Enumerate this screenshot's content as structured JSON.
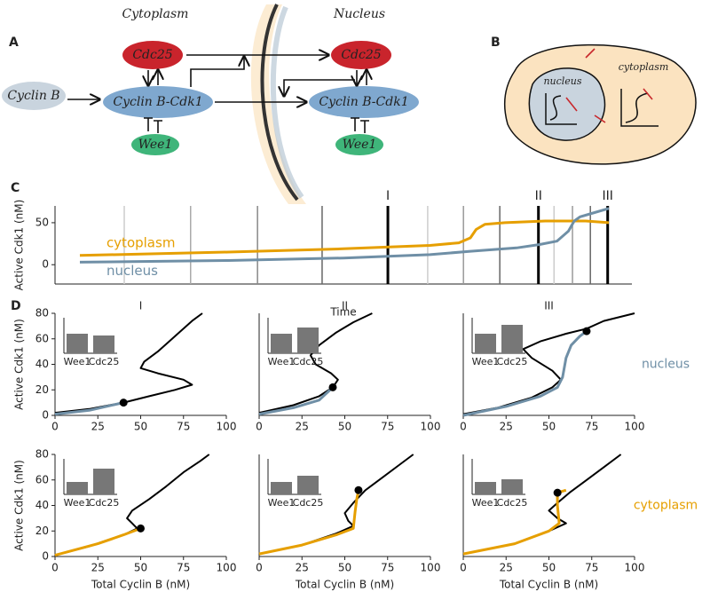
{
  "diagram": {
    "panel_a": "A",
    "panel_b": "B",
    "cytoplasm_title": "Cytoplasm",
    "nucleus_title": "Nucleus",
    "cdc25_left": "Cdc25",
    "cdc25_right": "Cdc25",
    "cyclin_b": "Cyclin B",
    "complex_left": "Cyclin B-Cdk1",
    "complex_right": "Cyclin B-Cdk1",
    "wee1_left": "Wee1",
    "wee1_right": "Wee1",
    "cell_nucleus": "nucleus",
    "cell_cytoplasm": "cytoplasm"
  },
  "chart_data": [
    {
      "type": "line",
      "panel_label": "C",
      "xlabel": "Time",
      "ylabel": "Active Cdk1 (nM)",
      "xlim": [
        0,
        100
      ],
      "ylim": [
        -23,
        70
      ],
      "yticks": [
        0,
        50
      ],
      "series": [
        {
          "name": "cytoplasm",
          "color": "#e69f00",
          "x": [
            4.3,
            30,
            50,
            65,
            70,
            72,
            73,
            74.5,
            78,
            85,
            92,
            96
          ],
          "values": [
            11,
            15,
            19,
            23,
            26,
            32,
            42,
            48,
            50,
            52,
            52,
            50
          ]
        },
        {
          "name": "nucleus",
          "color": "#6f8fa6",
          "x": [
            4.3,
            30,
            50,
            65,
            72,
            80,
            84,
            87,
            89,
            90,
            91,
            93,
            96
          ],
          "values": [
            3,
            5,
            8,
            12,
            16,
            20,
            24,
            28,
            40,
            52,
            57,
            61,
            67
          ]
        }
      ],
      "vlines": [
        {
          "x": 12,
          "color": "#cccccc"
        },
        {
          "x": 23.5,
          "color": "#aaaaaa"
        },
        {
          "x": 35.1,
          "color": "#888888"
        },
        {
          "x": 46.3,
          "color": "#666666"
        },
        {
          "x": 64.6,
          "color": "#cccccc"
        },
        {
          "x": 70.8,
          "color": "#999999"
        },
        {
          "x": 77.1,
          "color": "#666666"
        },
        {
          "x": 86.5,
          "color": "#cccccc"
        },
        {
          "x": 89.7,
          "color": "#999999"
        },
        {
          "x": 92.8,
          "color": "#666666"
        }
      ],
      "markers": [
        {
          "x": 57.7,
          "label": "I"
        },
        {
          "x": 83.8,
          "label": "II"
        },
        {
          "x": 95.8,
          "label": "III"
        }
      ]
    },
    {
      "type": "line",
      "panel_label": "D",
      "title": "I",
      "ylabel": "Active Cdk1 (nM)",
      "xlim": [
        0,
        100
      ],
      "ylim": [
        0,
        80
      ],
      "xticks": [
        0,
        25,
        50,
        75,
        100
      ],
      "yticks": [
        0,
        20,
        40,
        60,
        80
      ],
      "series": [
        {
          "color": "#000000",
          "x": [
            0,
            20,
            40,
            55,
            70,
            80,
            75,
            60,
            50,
            52,
            60,
            70,
            80,
            86
          ],
          "values": [
            2,
            5,
            10,
            15,
            20,
            24,
            28,
            33,
            37,
            42,
            50,
            62,
            74,
            80
          ]
        },
        {
          "color": "#6f8fa6",
          "x": [
            0,
            20,
            40
          ],
          "values": [
            1,
            4,
            10
          ]
        }
      ],
      "point": {
        "x": 40,
        "y": 10
      },
      "inset": {
        "type": "bar",
        "categories": [
          "Wee1",
          "Cdc25"
        ],
        "values": [
          22,
          20
        ],
        "ylim": [
          0,
          40
        ],
        "color": "#777777"
      }
    },
    {
      "type": "line",
      "title": "II",
      "xlim": [
        0,
        100
      ],
      "ylim": [
        0,
        80
      ],
      "xticks": [
        0,
        25,
        50,
        75,
        100
      ],
      "series": [
        {
          "color": "#000000",
          "x": [
            0,
            20,
            35,
            43,
            46,
            42,
            33,
            30,
            35,
            45,
            55,
            66
          ],
          "values": [
            2,
            8,
            15,
            22,
            28,
            33,
            40,
            47,
            55,
            65,
            73,
            80
          ]
        },
        {
          "color": "#6f8fa6",
          "x": [
            0,
            20,
            35,
            43
          ],
          "values": [
            1,
            6,
            12,
            22
          ]
        }
      ],
      "point": {
        "x": 43,
        "y": 22
      },
      "inset": {
        "type": "bar",
        "categories": [
          "Wee1",
          "Cdc25"
        ],
        "values": [
          22,
          29
        ],
        "ylim": [
          0,
          40
        ],
        "color": "#777777"
      }
    },
    {
      "type": "line",
      "title": "III",
      "row_label": "nucleus",
      "row_label_color": "#6f8fa6",
      "xlim": [
        0,
        100
      ],
      "ylim": [
        0,
        80
      ],
      "xticks": [
        0,
        25,
        50,
        75,
        100
      ],
      "series": [
        {
          "color": "#000000",
          "x": [
            0,
            20,
            40,
            52,
            57,
            52,
            40,
            35,
            45,
            60,
            72,
            82,
            100
          ],
          "values": [
            1,
            6,
            14,
            22,
            28,
            35,
            45,
            52,
            58,
            64,
            68,
            74,
            80
          ]
        },
        {
          "color": "#6f8fa6",
          "x": [
            0,
            25,
            45,
            55,
            58,
            60,
            63,
            68,
            72
          ],
          "values": [
            0,
            7,
            15,
            22,
            30,
            45,
            55,
            62,
            66
          ]
        }
      ],
      "point": {
        "x": 72,
        "y": 66
      },
      "inset": {
        "type": "bar",
        "categories": [
          "Wee1",
          "Cdc25"
        ],
        "values": [
          22,
          32
        ],
        "ylim": [
          0,
          40
        ],
        "color": "#777777"
      }
    },
    {
      "type": "line",
      "xlabel": "Total Cyclin B (nM)",
      "ylabel": "Active Cdk1 (nM)",
      "xlim": [
        0,
        100
      ],
      "ylim": [
        0,
        80
      ],
      "xticks": [
        0,
        25,
        50,
        75,
        100
      ],
      "yticks": [
        0,
        20,
        40,
        60,
        80
      ],
      "series": [
        {
          "color": "#000000",
          "x": [
            0,
            20,
            40,
            48,
            45,
            42,
            45,
            55,
            65,
            75,
            85,
            90
          ],
          "values": [
            1,
            8,
            17,
            22,
            26,
            30,
            36,
            45,
            55,
            66,
            75,
            80
          ]
        },
        {
          "color": "#e69f00",
          "x": [
            0,
            25,
            40,
            50
          ],
          "values": [
            1,
            10,
            17,
            22
          ]
        }
      ],
      "point": {
        "x": 50,
        "y": 22
      },
      "inset": {
        "type": "bar",
        "categories": [
          "Wee1",
          "Cdc25"
        ],
        "values": [
          14,
          29
        ],
        "ylim": [
          0,
          40
        ],
        "color": "#777777"
      }
    },
    {
      "type": "line",
      "xlabel": "Total Cyclin B (nM)",
      "xlim": [
        0,
        100
      ],
      "ylim": [
        0,
        80
      ],
      "xticks": [
        0,
        25,
        50,
        75,
        100
      ],
      "series": [
        {
          "color": "#000000",
          "x": [
            0,
            25,
            45,
            55,
            52,
            50,
            55,
            62,
            72,
            82,
            90
          ],
          "values": [
            2,
            9,
            18,
            24,
            28,
            34,
            42,
            52,
            62,
            72,
            80
          ]
        },
        {
          "color": "#e69f00",
          "x": [
            0,
            25,
            45,
            55,
            56,
            57,
            58
          ],
          "values": [
            2,
            9,
            17,
            22,
            35,
            45,
            52
          ]
        }
      ],
      "point": {
        "x": 58,
        "y": 52
      },
      "inset": {
        "type": "bar",
        "categories": [
          "Wee1",
          "Cdc25"
        ],
        "values": [
          14,
          21
        ],
        "ylim": [
          0,
          40
        ],
        "color": "#777777"
      }
    },
    {
      "type": "line",
      "xlabel": "Total Cyclin B (nM)",
      "row_label": "cytoplasm",
      "row_label_color": "#e69f00",
      "xlim": [
        0,
        100
      ],
      "ylim": [
        0,
        80
      ],
      "xticks": [
        0,
        25,
        50,
        75,
        100
      ],
      "series": [
        {
          "color": "#000000",
          "x": [
            0,
            30,
            50,
            60,
            55,
            50,
            55,
            62,
            72,
            82,
            92
          ],
          "values": [
            2,
            10,
            20,
            26,
            30,
            36,
            42,
            50,
            60,
            70,
            80
          ]
        },
        {
          "color": "#e69f00",
          "x": [
            0,
            30,
            50,
            56,
            55,
            55,
            60
          ],
          "values": [
            2,
            10,
            20,
            26,
            40,
            50,
            52
          ]
        }
      ],
      "point": {
        "x": 55,
        "y": 50
      },
      "inset": {
        "type": "bar",
        "categories": [
          "Wee1",
          "Cdc25"
        ],
        "values": [
          14,
          17
        ],
        "ylim": [
          0,
          40
        ],
        "color": "#777777"
      }
    }
  ]
}
